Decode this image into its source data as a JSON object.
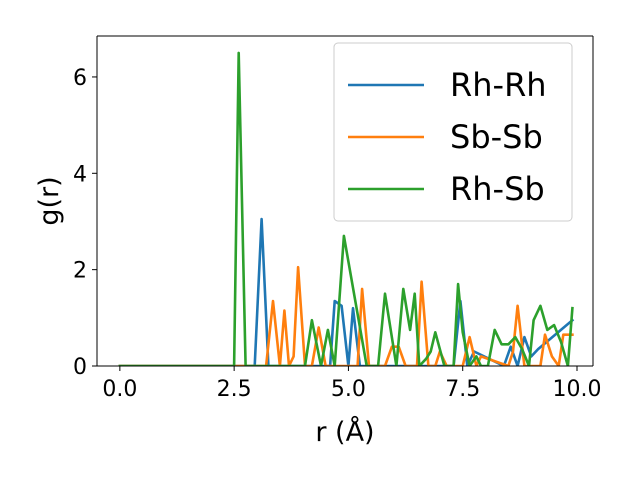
{
  "chart_data": {
    "type": "line",
    "title": "",
    "xlabel": "r (Å)",
    "ylabel": "g(r)",
    "xlim": [
      -0.5,
      10.35
    ],
    "ylim": [
      0,
      6.85
    ],
    "xticks": [
      0.0,
      2.5,
      5.0,
      7.5,
      10.0
    ],
    "xtick_labels": [
      "0.0",
      "2.5",
      "5.0",
      "7.5",
      "10.0"
    ],
    "yticks": [
      0,
      2,
      4,
      6
    ],
    "ytick_labels": [
      "0",
      "2",
      "4",
      "6"
    ],
    "grid": false,
    "legend_position": "top-right",
    "series": [
      {
        "name": "Rh-Rh",
        "color": "#1f77b4",
        "x": [
          0.0,
          2.95,
          3.1,
          3.25,
          4.6,
          4.7,
          4.85,
          5.0,
          5.1,
          5.25,
          7.3,
          7.45,
          7.6,
          7.75,
          8.4,
          8.55,
          8.7,
          8.85,
          9.0,
          9.15,
          9.9
        ],
        "y": [
          0.0,
          0.0,
          3.05,
          0.0,
          0.0,
          1.35,
          1.25,
          0.0,
          1.2,
          0.0,
          0.0,
          1.35,
          0.0,
          0.3,
          0.0,
          0.4,
          0.0,
          0.6,
          0.2,
          0.35,
          0.95
        ]
      },
      {
        "name": "Sb-Sb",
        "color": "#ff7f0e",
        "x": [
          0.0,
          3.2,
          3.35,
          3.5,
          3.6,
          3.7,
          3.8,
          3.9,
          4.05,
          4.2,
          4.35,
          4.5,
          5.2,
          5.3,
          5.45,
          5.8,
          5.95,
          6.1,
          6.25,
          6.5,
          6.6,
          6.75,
          6.9,
          7.0,
          7.15,
          7.5,
          7.65,
          7.8,
          7.9,
          8.5,
          8.6,
          8.7,
          8.85,
          9.2,
          9.3,
          9.45,
          9.6,
          9.7,
          9.9
        ],
        "y": [
          0.0,
          0.0,
          1.35,
          0.0,
          1.15,
          0.0,
          0.2,
          2.05,
          0.0,
          0.0,
          0.8,
          0.0,
          0.0,
          1.6,
          0.0,
          0.0,
          0.4,
          0.4,
          0.0,
          0.0,
          1.75,
          0.0,
          0.0,
          0.3,
          0.0,
          0.0,
          0.6,
          0.0,
          0.2,
          0.0,
          0.3,
          1.25,
          0.0,
          0.0,
          0.65,
          0.2,
          0.0,
          0.65,
          0.65
        ]
      },
      {
        "name": "Rh-Sb",
        "color": "#2ca02c",
        "x": [
          0.0,
          2.5,
          2.6,
          2.75,
          4.05,
          4.2,
          4.4,
          4.55,
          4.7,
          4.9,
          5.4,
          5.5,
          5.65,
          5.8,
          6.05,
          6.2,
          6.35,
          6.45,
          6.55,
          6.7,
          6.8,
          6.9,
          7.1,
          7.3,
          7.4,
          7.5,
          7.65,
          7.8,
          7.9,
          8.05,
          8.2,
          8.35,
          8.5,
          8.65,
          8.8,
          8.95,
          9.05,
          9.2,
          9.35,
          9.5,
          9.65,
          9.8,
          9.9
        ],
        "y": [
          0.0,
          0.0,
          6.5,
          0.0,
          0.0,
          0.95,
          0.0,
          0.75,
          0.0,
          2.7,
          0.0,
          0.0,
          0.0,
          1.5,
          0.0,
          1.6,
          0.75,
          1.5,
          0.0,
          0.15,
          0.3,
          0.7,
          0.0,
          0.0,
          1.7,
          0.7,
          0.0,
          0.2,
          0.0,
          0.0,
          0.75,
          0.45,
          0.45,
          0.6,
          0.35,
          0.0,
          0.95,
          1.25,
          0.75,
          0.85,
          0.5,
          0.0,
          1.2
        ]
      }
    ]
  }
}
